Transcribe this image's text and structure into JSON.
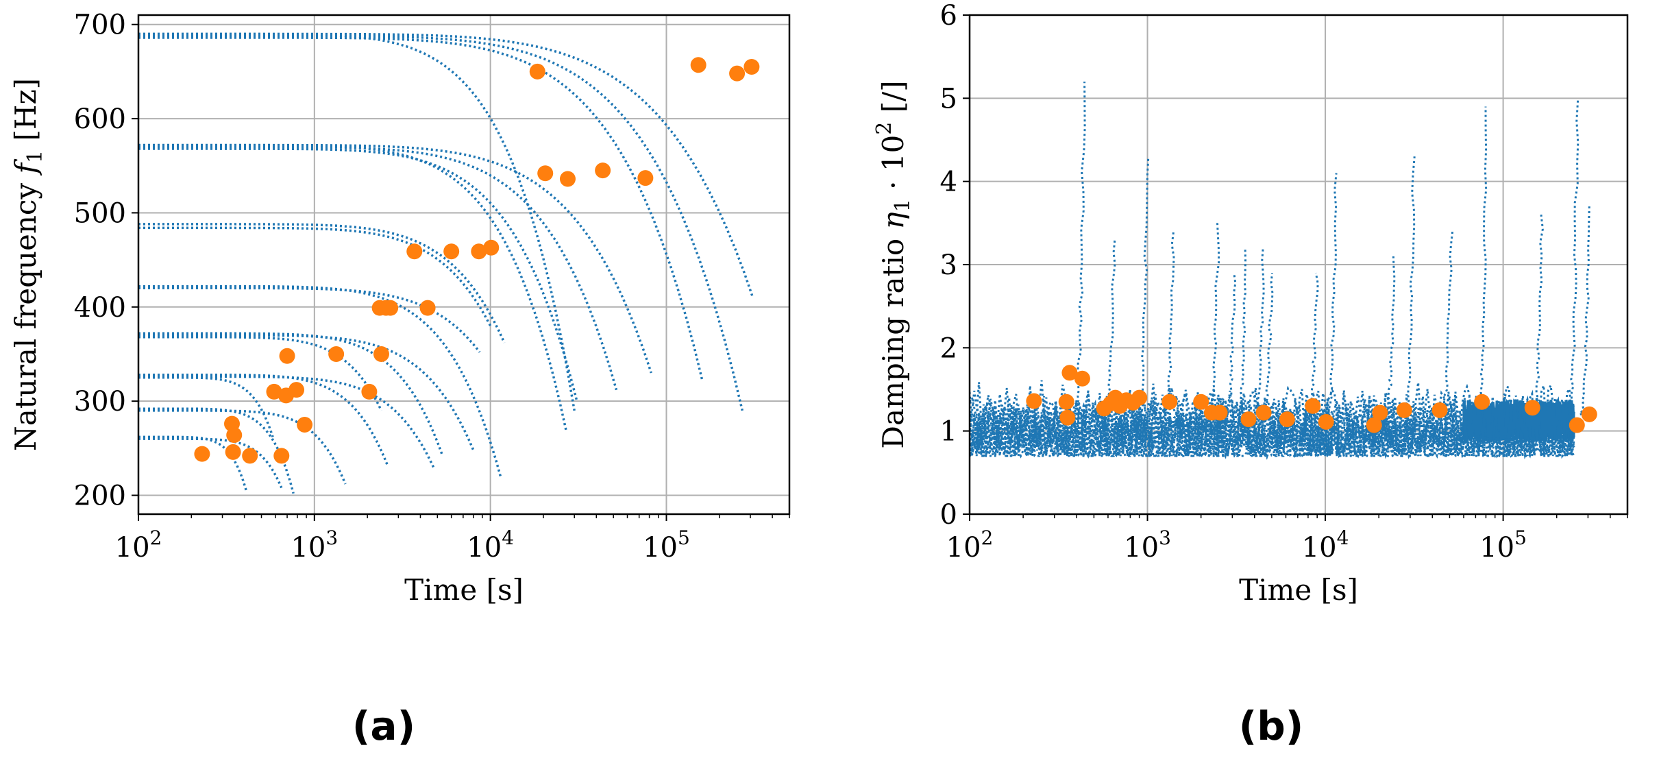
{
  "figure": {
    "panel_a_label": "(a)",
    "panel_b_label": "(b)"
  },
  "chart_data": [
    {
      "type": "scatter",
      "panel": "(a)",
      "title": "",
      "xlabel": "Time [s]",
      "ylabel": "Natural frequency f_1 [Hz]",
      "ylabel_parts": {
        "text": "Natural frequency ",
        "symbol": "f",
        "subscript": "1",
        "unit": " [Hz]"
      },
      "xscale": "log",
      "xlim": [
        100,
        500000
      ],
      "ylim": [
        180,
        710
      ],
      "xticks": [
        100,
        1000,
        10000,
        100000
      ],
      "xtick_labels": [
        {
          "base": "10",
          "exp": "2"
        },
        {
          "base": "10",
          "exp": "3"
        },
        {
          "base": "10",
          "exp": "4"
        },
        {
          "base": "10",
          "exp": "5"
        }
      ],
      "yticks": [
        200,
        300,
        400,
        500,
        600,
        700
      ],
      "ytick_labels": [
        "200",
        "300",
        "400",
        "500",
        "600",
        "700"
      ],
      "grid": true,
      "colors": {
        "trajectory": "#1f77b4",
        "marker": "#ff7f0e"
      },
      "trajectories": [
        {
          "start": 100,
          "end": 410,
          "f0": 262,
          "fend": 205
        },
        {
          "start": 100,
          "end": 650,
          "f0": 260,
          "fend": 208
        },
        {
          "start": 100,
          "end": 760,
          "f0": 292,
          "fend": 202
        },
        {
          "start": 100,
          "end": 1500,
          "f0": 290,
          "fend": 212
        },
        {
          "start": 100,
          "end": 2600,
          "f0": 328,
          "fend": 232
        },
        {
          "start": 100,
          "end": 4800,
          "f0": 326,
          "fend": 228
        },
        {
          "start": 100,
          "end": 5300,
          "f0": 372,
          "fend": 244
        },
        {
          "start": 100,
          "end": 8000,
          "f0": 370,
          "fend": 248
        },
        {
          "start": 100,
          "end": 11500,
          "f0": 422,
          "fend": 218
        },
        {
          "start": 100,
          "end": 8700,
          "f0": 420,
          "fend": 352
        },
        {
          "start": 100,
          "end": 12000,
          "f0": 488,
          "fend": 362
        },
        {
          "start": 100,
          "end": 27000,
          "f0": 572,
          "fend": 268
        },
        {
          "start": 100,
          "end": 31000,
          "f0": 568,
          "fend": 300
        },
        {
          "start": 100,
          "end": 52000,
          "f0": 570,
          "fend": 312
        },
        {
          "start": 100,
          "end": 82000,
          "f0": 572,
          "fend": 330
        },
        {
          "start": 100,
          "end": 30000,
          "f0": 690,
          "fend": 290
        },
        {
          "start": 100,
          "end": 160000,
          "f0": 686,
          "fend": 322
        },
        {
          "start": 100,
          "end": 270000,
          "f0": 688,
          "fend": 290
        },
        {
          "start": 100,
          "end": 310000,
          "f0": 690,
          "fend": 410
        },
        {
          "start": 100,
          "end": 10000,
          "f0": 484,
          "fend": 380
        },
        {
          "start": 100,
          "end": 2400,
          "f0": 368,
          "fend": 290
        },
        {
          "start": 100,
          "end": 580,
          "f0": 325,
          "fend": 262
        }
      ],
      "points": [
        {
          "x": 230,
          "y": 244
        },
        {
          "x": 340,
          "y": 276
        },
        {
          "x": 350,
          "y": 264
        },
        {
          "x": 345,
          "y": 246
        },
        {
          "x": 430,
          "y": 242
        },
        {
          "x": 650,
          "y": 242
        },
        {
          "x": 590,
          "y": 310
        },
        {
          "x": 690,
          "y": 306
        },
        {
          "x": 790,
          "y": 312
        },
        {
          "x": 700,
          "y": 348
        },
        {
          "x": 880,
          "y": 275
        },
        {
          "x": 1330,
          "y": 350
        },
        {
          "x": 2050,
          "y": 310
        },
        {
          "x": 2400,
          "y": 350
        },
        {
          "x": 2350,
          "y": 399
        },
        {
          "x": 2550,
          "y": 399
        },
        {
          "x": 2700,
          "y": 399
        },
        {
          "x": 4400,
          "y": 399
        },
        {
          "x": 3700,
          "y": 459
        },
        {
          "x": 6000,
          "y": 459
        },
        {
          "x": 8600,
          "y": 459
        },
        {
          "x": 10100,
          "y": 463
        },
        {
          "x": 18500,
          "y": 650
        },
        {
          "x": 20500,
          "y": 542
        },
        {
          "x": 27500,
          "y": 536
        },
        {
          "x": 43500,
          "y": 545
        },
        {
          "x": 76000,
          "y": 537
        },
        {
          "x": 152000,
          "y": 657
        },
        {
          "x": 252000,
          "y": 648
        },
        {
          "x": 305000,
          "y": 655
        }
      ]
    },
    {
      "type": "scatter",
      "panel": "(b)",
      "title": "",
      "xlabel": "Time [s]",
      "ylabel": "Damping ratio η_1 · 10^2 [/]",
      "ylabel_parts": {
        "text": "Damping ratio ",
        "symbol": "η",
        "subscript": "1",
        "mid": " · 10",
        "sup": "2",
        "unit": " [/]"
      },
      "xscale": "log",
      "xlim": [
        100,
        500000
      ],
      "ylim": [
        0,
        6
      ],
      "xticks": [
        100,
        1000,
        10000,
        100000
      ],
      "xtick_labels": [
        {
          "base": "10",
          "exp": "2"
        },
        {
          "base": "10",
          "exp": "3"
        },
        {
          "base": "10",
          "exp": "4"
        },
        {
          "base": "10",
          "exp": "5"
        }
      ],
      "yticks": [
        0,
        1,
        2,
        3,
        4,
        5,
        6
      ],
      "ytick_labels": [
        "0",
        "1",
        "2",
        "3",
        "4",
        "5",
        "6"
      ],
      "grid": true,
      "colors": {
        "trajectory": "#1f77b4",
        "marker": "#ff7f0e"
      },
      "spikes": [
        {
          "x": 440,
          "peak": 5.2
        },
        {
          "x": 650,
          "peak": 3.3
        },
        {
          "x": 1000,
          "peak": 4.3
        },
        {
          "x": 1400,
          "peak": 3.4
        },
        {
          "x": 2500,
          "peak": 3.5
        },
        {
          "x": 3100,
          "peak": 2.9
        },
        {
          "x": 3600,
          "peak": 3.2
        },
        {
          "x": 4500,
          "peak": 3.2
        },
        {
          "x": 5000,
          "peak": 2.9
        },
        {
          "x": 9000,
          "peak": 2.9
        },
        {
          "x": 11500,
          "peak": 4.1
        },
        {
          "x": 24500,
          "peak": 3.1
        },
        {
          "x": 31500,
          "peak": 4.3
        },
        {
          "x": 51000,
          "peak": 3.4
        },
        {
          "x": 81000,
          "peak": 4.9
        },
        {
          "x": 165000,
          "peak": 3.6
        },
        {
          "x": 262000,
          "peak": 5.0
        },
        {
          "x": 305000,
          "peak": 3.7
        }
      ],
      "band": {
        "x_start": 100,
        "x_end": 250000,
        "y_low": 0.8,
        "y_high": 1.55
      },
      "points": [
        {
          "x": 230,
          "y": 1.36
        },
        {
          "x": 350,
          "y": 1.35
        },
        {
          "x": 355,
          "y": 1.16
        },
        {
          "x": 365,
          "y": 1.7
        },
        {
          "x": 430,
          "y": 1.63
        },
        {
          "x": 570,
          "y": 1.27
        },
        {
          "x": 620,
          "y": 1.33
        },
        {
          "x": 660,
          "y": 1.4
        },
        {
          "x": 700,
          "y": 1.3
        },
        {
          "x": 760,
          "y": 1.37
        },
        {
          "x": 830,
          "y": 1.34
        },
        {
          "x": 900,
          "y": 1.4
        },
        {
          "x": 1330,
          "y": 1.35
        },
        {
          "x": 2000,
          "y": 1.35
        },
        {
          "x": 2300,
          "y": 1.22
        },
        {
          "x": 2550,
          "y": 1.22
        },
        {
          "x": 3700,
          "y": 1.14
        },
        {
          "x": 4500,
          "y": 1.22
        },
        {
          "x": 6100,
          "y": 1.14
        },
        {
          "x": 8500,
          "y": 1.3
        },
        {
          "x": 10100,
          "y": 1.11
        },
        {
          "x": 18800,
          "y": 1.07
        },
        {
          "x": 20300,
          "y": 1.22
        },
        {
          "x": 27800,
          "y": 1.25
        },
        {
          "x": 44000,
          "y": 1.25
        },
        {
          "x": 76000,
          "y": 1.35
        },
        {
          "x": 146000,
          "y": 1.28
        },
        {
          "x": 260000,
          "y": 1.07
        },
        {
          "x": 305000,
          "y": 1.2
        }
      ]
    }
  ]
}
